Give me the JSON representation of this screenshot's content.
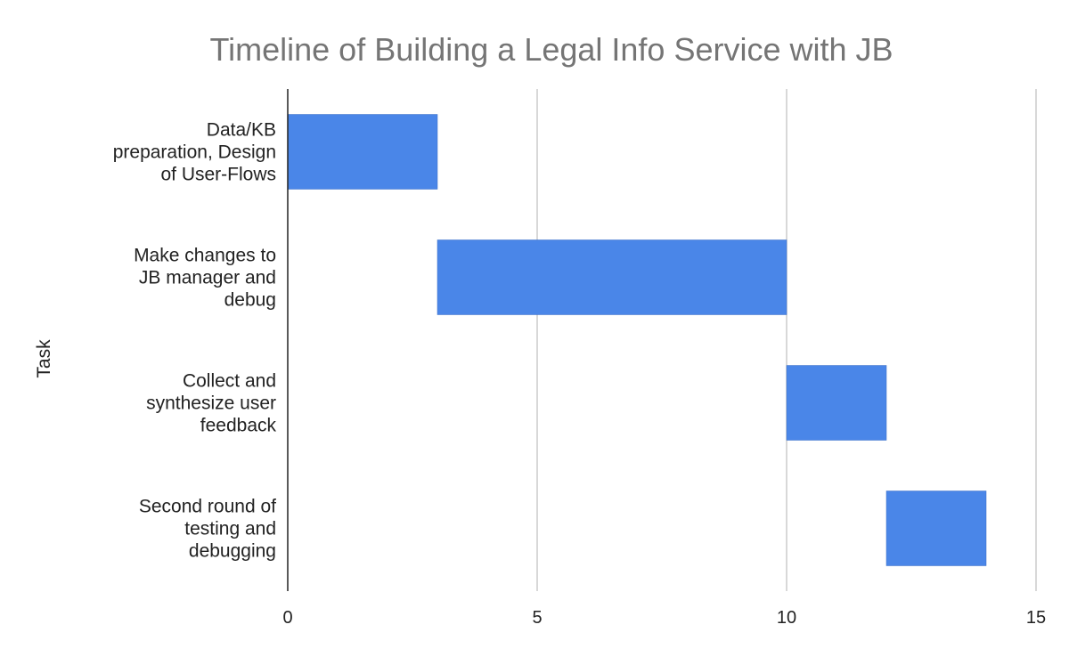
{
  "chart_data": {
    "type": "bar",
    "subtype": "gantt",
    "title": "Timeline of Building a Legal Info Service with JB",
    "xlabel": "",
    "ylabel": "Task",
    "xlim": [
      0,
      15
    ],
    "xticks": [
      0,
      5,
      10,
      15
    ],
    "grid": true,
    "legend": "none",
    "bar_color": "#4a86e8",
    "categories": [
      "Data/KB preparation, Design of User-Flows",
      "Make changes to JB manager and debug",
      "Collect and synthesize user feedback",
      "Second round of testing and debugging"
    ],
    "category_lines": [
      [
        "Data/KB",
        "preparation, Design",
        "of User-Flows"
      ],
      [
        "Make changes to",
        "JB manager and",
        "debug"
      ],
      [
        "Collect and",
        "synthesize user",
        "feedback"
      ],
      [
        "Second round of",
        "testing and",
        "debugging"
      ]
    ],
    "series": [
      {
        "start": [
          0,
          3,
          10,
          12
        ],
        "end": [
          3,
          10,
          12,
          14
        ]
      }
    ]
  }
}
